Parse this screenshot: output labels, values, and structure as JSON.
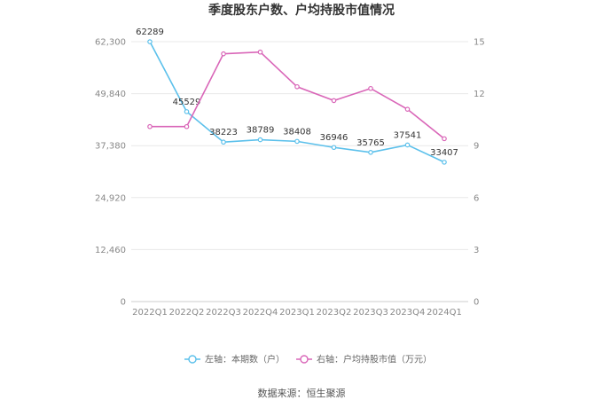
{
  "chart_data": {
    "type": "line",
    "title": "季度股东户数、户均持股市值情况",
    "categories": [
      "2022Q1",
      "2022Q2",
      "2022Q3",
      "2022Q4",
      "2023Q1",
      "2023Q2",
      "2023Q3",
      "2023Q4",
      "2024Q1"
    ],
    "left_axis": {
      "ticks": [
        "0",
        "12,460",
        "24,920",
        "37,380",
        "49,840",
        "62,300"
      ],
      "ylim": [
        0,
        62300
      ]
    },
    "right_axis": {
      "ticks": [
        "0",
        "3",
        "6",
        "9",
        "12",
        "15"
      ],
      "ylim": [
        0,
        15
      ]
    },
    "series": [
      {
        "name": "左轴：本期数（户）",
        "axis": "left",
        "color": "#5bc0eb",
        "values": [
          62289,
          45529,
          38223,
          38789,
          38408,
          36946,
          35765,
          37541,
          33407
        ],
        "labels": [
          "62289",
          "45529",
          "38223",
          "38789",
          "38408",
          "36946",
          "35765",
          "37541",
          "33407"
        ]
      },
      {
        "name": "右轴：户均持股市值（万元）",
        "axis": "right",
        "color": "#d966b8",
        "values": [
          10.1,
          10.1,
          14.3,
          14.4,
          12.4,
          11.6,
          12.3,
          11.1,
          9.4
        ]
      }
    ],
    "grid": true,
    "legend": "bottom"
  },
  "source": "数据来源：恒生聚源"
}
